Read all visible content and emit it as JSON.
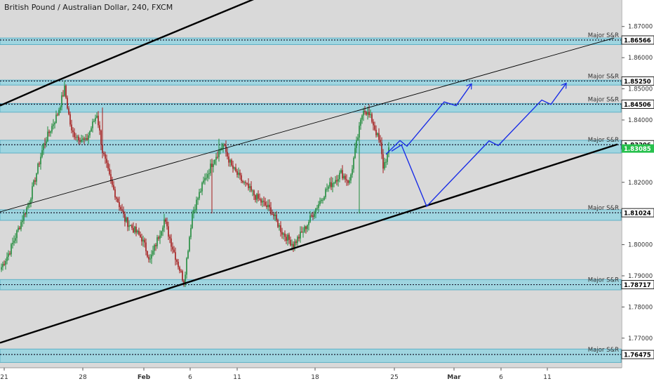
{
  "chart_data": {
    "type": "candlestick",
    "title": "British Pound / Australian Dollar, 240, FXCM",
    "x_tick_labels": [
      "21",
      "28",
      "Feb",
      "6",
      "11",
      "18",
      "25",
      "Mar",
      "6",
      "11"
    ],
    "y_range": [
      1.7605,
      1.8785
    ],
    "y_tick_labels": [
      "1.87000",
      "1.86000",
      "1.85000",
      "1.84000",
      "1.82000",
      "1.80000",
      "1.79000",
      "1.78000",
      "1.77000"
    ],
    "grid": false,
    "colors": {
      "plot_background": "#d9d9d9",
      "axis_background": "#ffffff",
      "zone_fill": "#9fd5e0",
      "zone_border": "#5fb1c6",
      "level_line": "#1a1a2e",
      "trendline": "#000000",
      "projection": "#1a2ee6",
      "bull_candle": "#1f8a3b",
      "bear_candle": "#a31b1b",
      "current_price_tag": "#27c14d"
    },
    "levels": [
      {
        "label": "Major S&R",
        "price_label": "1.86566",
        "price": 1.86566,
        "zone": [
          1.8642,
          1.8663
        ]
      },
      {
        "label": "Major S&R",
        "price_label": "1.85250",
        "price": 1.8525,
        "zone": [
          1.8512,
          1.8528
        ]
      },
      {
        "label": "Major S&R",
        "price_label": "1.84506",
        "price": 1.84506,
        "zone": [
          1.8425,
          1.8453
        ]
      },
      {
        "label": "Major S&R",
        "price_label": "1.83206",
        "price": 1.83206,
        "zone": [
          1.8294,
          1.8335
        ]
      },
      {
        "label": "Major S&R",
        "price_label": "1.81024",
        "price": 1.81024,
        "zone": [
          1.8078,
          1.8112
        ]
      },
      {
        "label": "Major S&R",
        "price_label": "1.78717",
        "price": 1.78717,
        "zone": [
          1.7855,
          1.7888
        ]
      },
      {
        "label": "Major S&R",
        "price_label": "1.76475",
        "price": 1.76475,
        "zone": [
          1.7622,
          1.7665
        ]
      }
    ],
    "current_price": {
      "value": 1.83085,
      "label": "1.83085"
    },
    "trendlines": [
      {
        "name": "channel-upper",
        "style": "thick",
        "points": [
          [
            0,
            1.8446
          ],
          [
            78,
            1.8523
          ],
          [
            450,
            1.887
          ]
        ]
      },
      {
        "name": "channel-middle",
        "style": "thin",
        "points": [
          [
            0,
            1.8105
          ],
          [
            875,
            1.8663
          ]
        ]
      },
      {
        "name": "channel-lower",
        "style": "thick",
        "points": [
          [
            0,
            1.7685
          ],
          [
            258,
            1.7872
          ],
          [
            880,
            1.8322
          ]
        ]
      }
    ],
    "projections": [
      {
        "name": "projection-a",
        "points": [
          [
            550,
            1.829
          ],
          [
            570,
            1.8334
          ],
          [
            580,
            1.8316
          ],
          [
            633,
            1.8458
          ],
          [
            650,
            1.8446
          ],
          [
            672,
            1.8516
          ]
        ]
      },
      {
        "name": "projection-b",
        "points": [
          [
            558,
            1.83
          ],
          [
            572,
            1.832
          ],
          [
            608,
            1.8123
          ],
          [
            697,
            1.8333
          ],
          [
            710,
            1.8318
          ],
          [
            772,
            1.8464
          ],
          [
            785,
            1.845
          ],
          [
            807,
            1.8518
          ]
        ]
      }
    ],
    "path_keys": [
      {
        "i": 0,
        "p": 1.7928
      },
      {
        "i": 6,
        "p": 1.798
      },
      {
        "i": 12,
        "p": 1.805
      },
      {
        "i": 20,
        "p": 1.814
      },
      {
        "i": 30,
        "p": 1.832
      },
      {
        "i": 40,
        "p": 1.842
      },
      {
        "i": 45,
        "p": 1.85
      },
      {
        "i": 50,
        "p": 1.836
      },
      {
        "i": 60,
        "p": 1.833
      },
      {
        "i": 68,
        "p": 1.842
      },
      {
        "i": 72,
        "p": 1.83
      },
      {
        "i": 78,
        "p": 1.82
      },
      {
        "i": 88,
        "p": 1.808
      },
      {
        "i": 100,
        "p": 1.802
      },
      {
        "i": 106,
        "p": 1.795
      },
      {
        "i": 116,
        "p": 1.808
      },
      {
        "i": 122,
        "p": 1.799
      },
      {
        "i": 130,
        "p": 1.788
      },
      {
        "i": 136,
        "p": 1.81
      },
      {
        "i": 144,
        "p": 1.82
      },
      {
        "i": 152,
        "p": 1.828
      },
      {
        "i": 158,
        "p": 1.832
      },
      {
        "i": 164,
        "p": 1.825
      },
      {
        "i": 172,
        "p": 1.82
      },
      {
        "i": 182,
        "p": 1.815
      },
      {
        "i": 192,
        "p": 1.811
      },
      {
        "i": 200,
        "p": 1.804
      },
      {
        "i": 208,
        "p": 1.8
      },
      {
        "i": 216,
        "p": 1.805
      },
      {
        "i": 222,
        "p": 1.81
      },
      {
        "i": 232,
        "p": 1.818
      },
      {
        "i": 242,
        "p": 1.823
      },
      {
        "i": 248,
        "p": 1.82
      },
      {
        "i": 252,
        "p": 1.83
      },
      {
        "i": 258,
        "p": 1.844
      },
      {
        "i": 264,
        "p": 1.84
      },
      {
        "i": 270,
        "p": 1.832
      },
      {
        "i": 272,
        "p": 1.825
      },
      {
        "i": 276,
        "p": 1.83
      }
    ],
    "spike_candles": [
      {
        "i": 45,
        "high": 1.8525
      },
      {
        "i": 72,
        "high": 1.844
      },
      {
        "i": 150,
        "low": 1.81
      },
      {
        "i": 155,
        "high": 1.834
      },
      {
        "i": 255,
        "low": 1.81
      },
      {
        "i": 262,
        "high": 1.845
      }
    ]
  }
}
